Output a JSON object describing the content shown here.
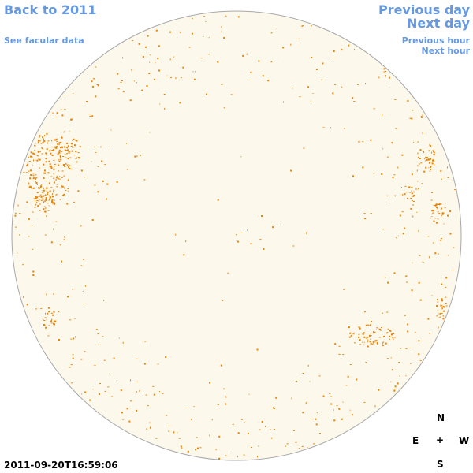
{
  "nav": {
    "back": "Back to 2011",
    "facular": "See facular data",
    "prev_day": "Previous day",
    "next_day": "Next day",
    "prev_hour": "Previous hour",
    "next_hour": "Next hour"
  },
  "compass": {
    "north": "N",
    "east": "E",
    "center": "+",
    "west": "W",
    "south": "S"
  },
  "timestamp": "2011-09-20T16:59:06",
  "colors": {
    "link": "#6699e0",
    "disk_fill": "#fdf8ec",
    "disk_outline": "#a8a8a8",
    "region": "#e88400"
  }
}
